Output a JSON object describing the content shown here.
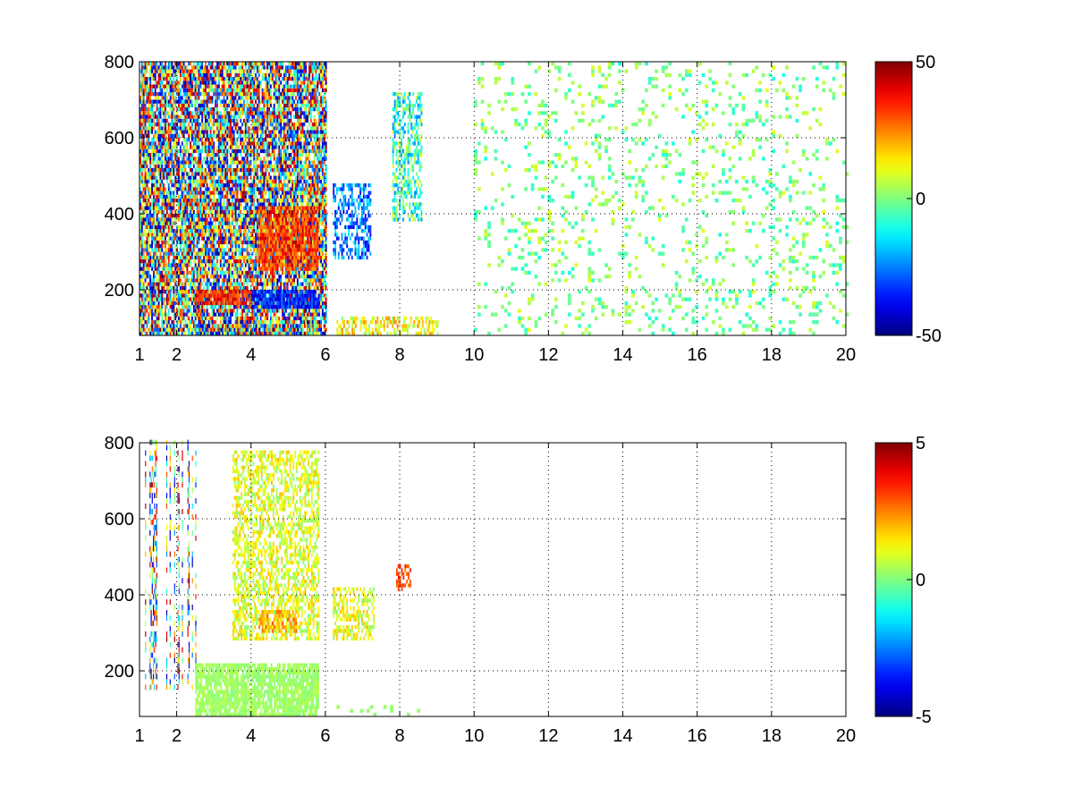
{
  "chart_data": [
    {
      "type": "heatmap",
      "title": "",
      "xlabel": "",
      "ylabel": "",
      "xlim": [
        1,
        20
      ],
      "ylim": [
        80,
        800
      ],
      "xticks": [
        "1",
        "2",
        "4",
        "6",
        "8",
        "10",
        "12",
        "14",
        "16",
        "18",
        "20"
      ],
      "xtick_values": [
        1,
        2,
        4,
        6,
        8,
        10,
        12,
        14,
        16,
        18,
        20
      ],
      "yticks": [
        "200",
        "400",
        "600",
        "800"
      ],
      "ytick_values": [
        200,
        400,
        600,
        800
      ],
      "grid": true,
      "colormap": "jet",
      "clim": [
        -50,
        50
      ],
      "colorbar_ticks": [
        "50",
        "0",
        "-50"
      ],
      "colorbar_tick_values": [
        50,
        0,
        -50
      ],
      "description_regions": [
        {
          "x": [
            1.0,
            6.0
          ],
          "y": [
            80,
            800
          ],
          "pattern": "dense",
          "value_range": [
            -50,
            50
          ]
        },
        {
          "x": [
            4.2,
            5.8
          ],
          "y": [
            250,
            420
          ],
          "pattern": "dense",
          "value_range": [
            20,
            45
          ]
        },
        {
          "x": [
            2.5,
            5.8
          ],
          "y": [
            80,
            110
          ],
          "pattern": "dense",
          "value_range": [
            -50,
            50
          ]
        },
        {
          "x": [
            4.0,
            5.8
          ],
          "y": [
            150,
            200
          ],
          "pattern": "dense",
          "value_range": [
            -45,
            -25
          ]
        },
        {
          "x": [
            2.5,
            4.0
          ],
          "y": [
            160,
            200
          ],
          "pattern": "dense",
          "value_range": [
            25,
            45
          ]
        },
        {
          "x": [
            6.2,
            7.2
          ],
          "y": [
            280,
            480
          ],
          "pattern": "moderate",
          "value_range": [
            -40,
            -10
          ]
        },
        {
          "x": [
            7.8,
            8.6
          ],
          "y": [
            380,
            720
          ],
          "pattern": "moderate",
          "value_range": [
            -25,
            10
          ]
        },
        {
          "x": [
            6.3,
            9.0
          ],
          "y": [
            80,
            130
          ],
          "pattern": "moderate",
          "value_range": [
            0,
            25
          ]
        },
        {
          "x": [
            10.0,
            20.0
          ],
          "y": [
            80,
            800
          ],
          "pattern": "sparse",
          "value_range": [
            -10,
            10
          ]
        }
      ]
    },
    {
      "type": "heatmap",
      "title": "",
      "xlabel": "",
      "ylabel": "",
      "xlim": [
        1,
        20
      ],
      "ylim": [
        80,
        800
      ],
      "xticks": [
        "1",
        "2",
        "4",
        "6",
        "8",
        "10",
        "12",
        "14",
        "16",
        "18",
        "20"
      ],
      "xtick_values": [
        1,
        2,
        4,
        6,
        8,
        10,
        12,
        14,
        16,
        18,
        20
      ],
      "yticks": [
        "200",
        "400",
        "600",
        "800"
      ],
      "ytick_values": [
        200,
        400,
        600,
        800
      ],
      "grid": true,
      "colormap": "jet",
      "clim": [
        -5,
        5
      ],
      "colorbar_ticks": [
        "5",
        "0",
        "-5"
      ],
      "colorbar_tick_values": [
        5,
        0,
        -5
      ],
      "description_regions": [
        {
          "x": [
            1.0,
            2.5
          ],
          "y": [
            150,
            800
          ],
          "pattern": "streaks",
          "value_range": [
            -5,
            5
          ]
        },
        {
          "x": [
            2.5,
            5.8
          ],
          "y": [
            80,
            220
          ],
          "pattern": "dense",
          "value_range": [
            0.0,
            0.6
          ]
        },
        {
          "x": [
            3.5,
            5.8
          ],
          "y": [
            280,
            780
          ],
          "pattern": "moderate",
          "value_range": [
            0,
            2
          ]
        },
        {
          "x": [
            4.2,
            5.2
          ],
          "y": [
            300,
            360
          ],
          "pattern": "moderate",
          "value_range": [
            1.5,
            3
          ]
        },
        {
          "x": [
            6.2,
            7.3
          ],
          "y": [
            280,
            420
          ],
          "pattern": "moderate",
          "value_range": [
            0,
            2
          ]
        },
        {
          "x": [
            7.9,
            8.3
          ],
          "y": [
            410,
            480
          ],
          "pattern": "moderate",
          "value_range": [
            2.5,
            3.5
          ]
        },
        {
          "x": [
            6.3,
            8.5
          ],
          "y": [
            80,
            110
          ],
          "pattern": "sparse",
          "value_range": [
            0,
            0.5
          ]
        }
      ]
    }
  ]
}
